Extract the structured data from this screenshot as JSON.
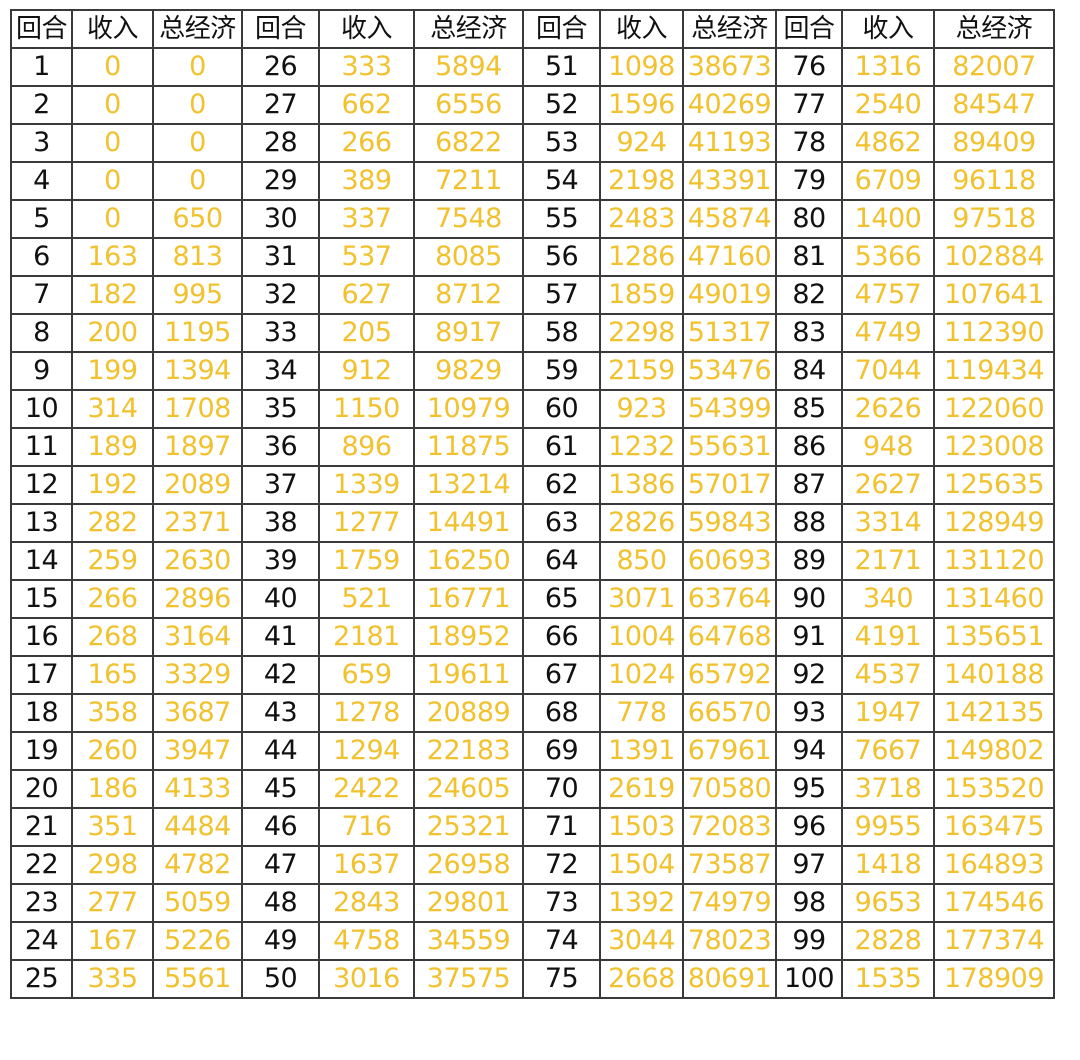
{
  "headers": [
    "回合",
    "收入",
    "总经济",
    "回合",
    "收入",
    "总经济",
    "回合",
    "收入",
    "总经济",
    "回合",
    "收入",
    "总经济"
  ],
  "colors": {
    "round_text": "#111111",
    "value_text": "#f2c12e",
    "grid": "#3a3a3a"
  },
  "rows": [
    [
      "1",
      "0",
      "0",
      "26",
      "333",
      "5894",
      "51",
      "1098",
      "38673",
      "76",
      "1316",
      "82007"
    ],
    [
      "2",
      "0",
      "0",
      "27",
      "662",
      "6556",
      "52",
      "1596",
      "40269",
      "77",
      "2540",
      "84547"
    ],
    [
      "3",
      "0",
      "0",
      "28",
      "266",
      "6822",
      "53",
      "924",
      "41193",
      "78",
      "4862",
      "89409"
    ],
    [
      "4",
      "0",
      "0",
      "29",
      "389",
      "7211",
      "54",
      "2198",
      "43391",
      "79",
      "6709",
      "96118"
    ],
    [
      "5",
      "0",
      "650",
      "30",
      "337",
      "7548",
      "55",
      "2483",
      "45874",
      "80",
      "1400",
      "97518"
    ],
    [
      "6",
      "163",
      "813",
      "31",
      "537",
      "8085",
      "56",
      "1286",
      "47160",
      "81",
      "5366",
      "102884"
    ],
    [
      "7",
      "182",
      "995",
      "32",
      "627",
      "8712",
      "57",
      "1859",
      "49019",
      "82",
      "4757",
      "107641"
    ],
    [
      "8",
      "200",
      "1195",
      "33",
      "205",
      "8917",
      "58",
      "2298",
      "51317",
      "83",
      "4749",
      "112390"
    ],
    [
      "9",
      "199",
      "1394",
      "34",
      "912",
      "9829",
      "59",
      "2159",
      "53476",
      "84",
      "7044",
      "119434"
    ],
    [
      "10",
      "314",
      "1708",
      "35",
      "1150",
      "10979",
      "60",
      "923",
      "54399",
      "85",
      "2626",
      "122060"
    ],
    [
      "11",
      "189",
      "1897",
      "36",
      "896",
      "11875",
      "61",
      "1232",
      "55631",
      "86",
      "948",
      "123008"
    ],
    [
      "12",
      "192",
      "2089",
      "37",
      "1339",
      "13214",
      "62",
      "1386",
      "57017",
      "87",
      "2627",
      "125635"
    ],
    [
      "13",
      "282",
      "2371",
      "38",
      "1277",
      "14491",
      "63",
      "2826",
      "59843",
      "88",
      "3314",
      "128949"
    ],
    [
      "14",
      "259",
      "2630",
      "39",
      "1759",
      "16250",
      "64",
      "850",
      "60693",
      "89",
      "2171",
      "131120"
    ],
    [
      "15",
      "266",
      "2896",
      "40",
      "521",
      "16771",
      "65",
      "3071",
      "63764",
      "90",
      "340",
      "131460"
    ],
    [
      "16",
      "268",
      "3164",
      "41",
      "2181",
      "18952",
      "66",
      "1004",
      "64768",
      "91",
      "4191",
      "135651"
    ],
    [
      "17",
      "165",
      "3329",
      "42",
      "659",
      "19611",
      "67",
      "1024",
      "65792",
      "92",
      "4537",
      "140188"
    ],
    [
      "18",
      "358",
      "3687",
      "43",
      "1278",
      "20889",
      "68",
      "778",
      "66570",
      "93",
      "1947",
      "142135"
    ],
    [
      "19",
      "260",
      "3947",
      "44",
      "1294",
      "22183",
      "69",
      "1391",
      "67961",
      "94",
      "7667",
      "149802"
    ],
    [
      "20",
      "186",
      "4133",
      "45",
      "2422",
      "24605",
      "70",
      "2619",
      "70580",
      "95",
      "3718",
      "153520"
    ],
    [
      "21",
      "351",
      "4484",
      "46",
      "716",
      "25321",
      "71",
      "1503",
      "72083",
      "96",
      "9955",
      "163475"
    ],
    [
      "22",
      "298",
      "4782",
      "47",
      "1637",
      "26958",
      "72",
      "1504",
      "73587",
      "97",
      "1418",
      "164893"
    ],
    [
      "23",
      "277",
      "5059",
      "48",
      "2843",
      "29801",
      "73",
      "1392",
      "74979",
      "98",
      "9653",
      "174546"
    ],
    [
      "24",
      "167",
      "5226",
      "49",
      "4758",
      "34559",
      "74",
      "3044",
      "78023",
      "99",
      "2828",
      "177374"
    ],
    [
      "25",
      "335",
      "5561",
      "50",
      "3016",
      "37575",
      "75",
      "2668",
      "80691",
      "100",
      "1535",
      "178909"
    ]
  ]
}
